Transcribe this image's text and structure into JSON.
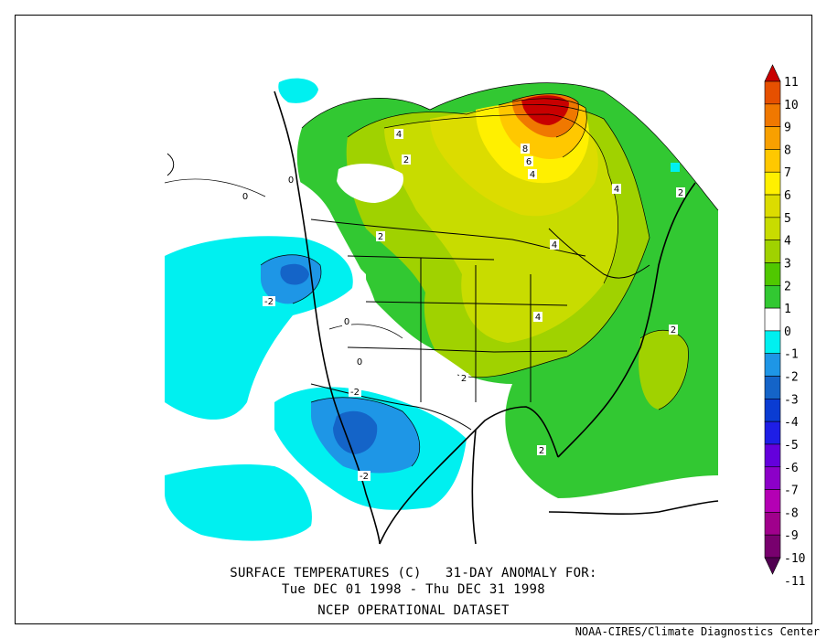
{
  "caption": {
    "line1": "SURFACE TEMPERATURES (C)   31-DAY ANOMALY FOR:",
    "line2": "Tue DEC 01 1998 - Thu DEC 31 1998",
    "line3": "NCEP OPERATIONAL DATASET"
  },
  "credit": "NOAA-CIRES/Climate Diagnostics Center",
  "colorbar": {
    "levels": [
      {
        "label": "11",
        "color": "#c80000"
      },
      {
        "label": "10",
        "color": "#e65000"
      },
      {
        "label": "9",
        "color": "#f07800"
      },
      {
        "label": "8",
        "color": "#f8a000"
      },
      {
        "label": "7",
        "color": "#ffc800"
      },
      {
        "label": "6",
        "color": "#fff000"
      },
      {
        "label": "5",
        "color": "#dcdc00"
      },
      {
        "label": "4",
        "color": "#c8dc00"
      },
      {
        "label": "3",
        "color": "#a0d200"
      },
      {
        "label": "2",
        "color": "#50c800"
      },
      {
        "label": "1",
        "color": "#32c832"
      },
      {
        "label": "0",
        "color": "#ffffff"
      },
      {
        "label": "-1",
        "color": "#00f0f0"
      },
      {
        "label": "-2",
        "color": "#1e96e6"
      },
      {
        "label": "-3",
        "color": "#1464c8"
      },
      {
        "label": "-4",
        "color": "#0a3cd2"
      },
      {
        "label": "-5",
        "color": "#1e1ee6"
      },
      {
        "label": "-6",
        "color": "#6400dc"
      },
      {
        "label": "-7",
        "color": "#8c00c8"
      },
      {
        "label": "-8",
        "color": "#b400b4"
      },
      {
        "label": "-9",
        "color": "#a0008c"
      },
      {
        "label": "-10",
        "color": "#78006e"
      },
      {
        "label": "-11",
        "color": "#500050"
      }
    ]
  },
  "contour_labels": [
    "4",
    "2",
    "8",
    "6",
    "4",
    "4",
    "4",
    "2",
    "0",
    "0",
    "-2",
    "0",
    "0",
    "4",
    "2",
    "2",
    "-2",
    "-2",
    "2",
    "2"
  ]
}
